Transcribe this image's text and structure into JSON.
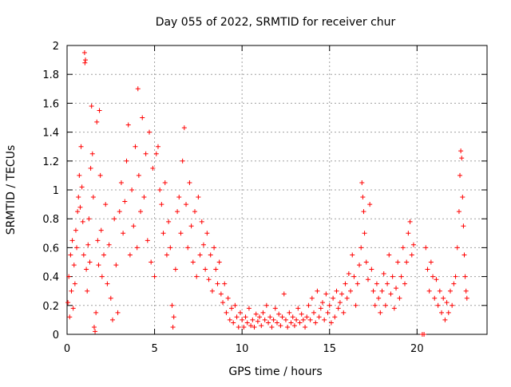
{
  "chart_data": {
    "type": "scatter",
    "title": "Day 055 of 2022, SRMTID for receiver chur",
    "xlabel": "GPS time / hours",
    "ylabel": "SRMTID / TECUs",
    "xlim": [
      0,
      24
    ],
    "ylim": [
      0,
      2
    ],
    "x_ticks": [
      0,
      5,
      10,
      15,
      20
    ],
    "x_tick_labels": [
      "0",
      "5",
      "10",
      "15",
      "20"
    ],
    "y_ticks": [
      0,
      0.2,
      0.4,
      0.6,
      0.8,
      1,
      1.2,
      1.4,
      1.6,
      1.8,
      2
    ],
    "y_tick_labels": [
      "0",
      "0.2",
      "0.4",
      "0.6",
      "0.8",
      "1",
      "1.2",
      "1.4",
      "1.6",
      "1.8",
      "2"
    ],
    "grid": true,
    "marker": "+",
    "marker_color": "#ff0000",
    "series": [
      {
        "name": "SRMTID",
        "points": [
          [
            0.05,
            0.22
          ],
          [
            0.1,
            0.4
          ],
          [
            0.15,
            0.12
          ],
          [
            0.2,
            0.55
          ],
          [
            0.25,
            0.3
          ],
          [
            0.3,
            0.65
          ],
          [
            0.35,
            0.18
          ],
          [
            0.4,
            0.48
          ],
          [
            0.45,
            0.35
          ],
          [
            0.5,
            0.72
          ],
          [
            0.55,
            0.6
          ],
          [
            0.6,
            0.85
          ],
          [
            0.65,
            0.95
          ],
          [
            0.7,
            1.1
          ],
          [
            0.75,
            0.88
          ],
          [
            0.8,
            1.3
          ],
          [
            0.85,
            1.02
          ],
          [
            0.9,
            0.78
          ],
          [
            0.95,
            0.55
          ],
          [
            1.0,
            1.95
          ],
          [
            1.02,
            1.88
          ],
          [
            1.05,
            1.9
          ],
          [
            1.1,
            0.45
          ],
          [
            1.15,
            0.3
          ],
          [
            1.2,
            0.62
          ],
          [
            1.25,
            0.8
          ],
          [
            1.3,
            0.5
          ],
          [
            1.35,
            1.15
          ],
          [
            1.4,
            1.58
          ],
          [
            1.45,
            1.25
          ],
          [
            1.5,
            0.95
          ],
          [
            1.55,
            0.05
          ],
          [
            1.6,
            0.02
          ],
          [
            1.65,
            0.15
          ],
          [
            1.7,
            1.47
          ],
          [
            1.75,
            0.65
          ],
          [
            1.8,
            0.48
          ],
          [
            1.85,
            1.55
          ],
          [
            1.9,
            1.1
          ],
          [
            1.95,
            0.72
          ],
          [
            2.0,
            0.4
          ],
          [
            2.1,
            0.55
          ],
          [
            2.2,
            0.9
          ],
          [
            2.3,
            0.35
          ],
          [
            2.4,
            0.62
          ],
          [
            2.5,
            0.25
          ],
          [
            2.6,
            0.1
          ],
          [
            2.7,
            0.8
          ],
          [
            2.8,
            0.48
          ],
          [
            2.9,
            0.15
          ],
          [
            3.0,
            0.85
          ],
          [
            3.1,
            1.05
          ],
          [
            3.2,
            0.7
          ],
          [
            3.3,
            0.92
          ],
          [
            3.4,
            1.2
          ],
          [
            3.5,
            1.45
          ],
          [
            3.6,
            0.55
          ],
          [
            3.7,
            1.0
          ],
          [
            3.8,
            0.75
          ],
          [
            3.9,
            1.3
          ],
          [
            4.0,
            0.6
          ],
          [
            4.05,
            1.7
          ],
          [
            4.1,
            1.1
          ],
          [
            4.2,
            0.85
          ],
          [
            4.3,
            1.5
          ],
          [
            4.4,
            0.95
          ],
          [
            4.5,
            1.25
          ],
          [
            4.6,
            0.65
          ],
          [
            4.7,
            1.4
          ],
          [
            4.8,
            0.5
          ],
          [
            4.9,
            1.15
          ],
          [
            5.0,
            0.4
          ],
          [
            5.1,
            1.25
          ],
          [
            5.2,
            1.3
          ],
          [
            5.3,
            1.0
          ],
          [
            5.4,
            0.9
          ],
          [
            5.5,
            0.7
          ],
          [
            5.6,
            1.05
          ],
          [
            5.7,
            0.55
          ],
          [
            5.8,
            0.78
          ],
          [
            5.9,
            0.6
          ],
          [
            6.0,
            0.2
          ],
          [
            6.05,
            0.05
          ],
          [
            6.1,
            0.12
          ],
          [
            6.2,
            0.45
          ],
          [
            6.3,
            0.85
          ],
          [
            6.4,
            0.95
          ],
          [
            6.5,
            0.7
          ],
          [
            6.6,
            1.2
          ],
          [
            6.7,
            1.43
          ],
          [
            6.8,
            0.9
          ],
          [
            6.9,
            0.6
          ],
          [
            7.0,
            1.05
          ],
          [
            7.1,
            0.75
          ],
          [
            7.2,
            0.5
          ],
          [
            7.3,
            0.85
          ],
          [
            7.4,
            0.4
          ],
          [
            7.5,
            0.95
          ],
          [
            7.6,
            0.55
          ],
          [
            7.7,
            0.78
          ],
          [
            7.8,
            0.62
          ],
          [
            7.9,
            0.45
          ],
          [
            8.0,
            0.7
          ],
          [
            8.1,
            0.38
          ],
          [
            8.2,
            0.55
          ],
          [
            8.3,
            0.3
          ],
          [
            8.4,
            0.6
          ],
          [
            8.5,
            0.45
          ],
          [
            8.6,
            0.35
          ],
          [
            8.7,
            0.5
          ],
          [
            8.8,
            0.28
          ],
          [
            8.9,
            0.22
          ],
          [
            9.0,
            0.35
          ],
          [
            9.1,
            0.15
          ],
          [
            9.2,
            0.25
          ],
          [
            9.3,
            0.1
          ],
          [
            9.4,
            0.18
          ],
          [
            9.5,
            0.08
          ],
          [
            9.6,
            0.2
          ],
          [
            9.7,
            0.12
          ],
          [
            9.8,
            0.05
          ],
          [
            9.9,
            0.15
          ],
          [
            10.0,
            0.1
          ],
          [
            10.1,
            0.05
          ],
          [
            10.2,
            0.12
          ],
          [
            10.3,
            0.08
          ],
          [
            10.4,
            0.18
          ],
          [
            10.5,
            0.06
          ],
          [
            10.6,
            0.1
          ],
          [
            10.7,
            0.05
          ],
          [
            10.8,
            0.14
          ],
          [
            10.9,
            0.09
          ],
          [
            11.0,
            0.12
          ],
          [
            11.1,
            0.06
          ],
          [
            11.2,
            0.15
          ],
          [
            11.3,
            0.1
          ],
          [
            11.4,
            0.2
          ],
          [
            11.5,
            0.08
          ],
          [
            11.6,
            0.12
          ],
          [
            11.7,
            0.05
          ],
          [
            11.8,
            0.1
          ],
          [
            11.9,
            0.18
          ],
          [
            12.0,
            0.08
          ],
          [
            12.1,
            0.14
          ],
          [
            12.2,
            0.06
          ],
          [
            12.3,
            0.12
          ],
          [
            12.4,
            0.28
          ],
          [
            12.5,
            0.1
          ],
          [
            12.6,
            0.05
          ],
          [
            12.7,
            0.15
          ],
          [
            12.8,
            0.08
          ],
          [
            12.9,
            0.12
          ],
          [
            13.0,
            0.06
          ],
          [
            13.1,
            0.1
          ],
          [
            13.2,
            0.18
          ],
          [
            13.3,
            0.08
          ],
          [
            13.4,
            0.14
          ],
          [
            13.5,
            0.1
          ],
          [
            13.6,
            0.05
          ],
          [
            13.7,
            0.12
          ],
          [
            13.8,
            0.2
          ],
          [
            13.9,
            0.1
          ],
          [
            14.0,
            0.25
          ],
          [
            14.1,
            0.15
          ],
          [
            14.2,
            0.08
          ],
          [
            14.3,
            0.3
          ],
          [
            14.4,
            0.12
          ],
          [
            14.5,
            0.18
          ],
          [
            14.6,
            0.22
          ],
          [
            14.7,
            0.1
          ],
          [
            14.8,
            0.28
          ],
          [
            14.9,
            0.15
          ],
          [
            15.0,
            0.2
          ],
          [
            15.1,
            0.08
          ],
          [
            15.2,
            0.25
          ],
          [
            15.3,
            0.12
          ],
          [
            15.4,
            0.3
          ],
          [
            15.5,
            0.18
          ],
          [
            15.6,
            0.22
          ],
          [
            15.7,
            0.28
          ],
          [
            15.8,
            0.15
          ],
          [
            15.9,
            0.35
          ],
          [
            16.0,
            0.25
          ],
          [
            16.1,
            0.42
          ],
          [
            16.2,
            0.3
          ],
          [
            16.3,
            0.55
          ],
          [
            16.4,
            0.4
          ],
          [
            16.5,
            0.2
          ],
          [
            16.6,
            0.35
          ],
          [
            16.7,
            0.48
          ],
          [
            16.8,
            0.6
          ],
          [
            16.85,
            1.05
          ],
          [
            16.9,
            0.95
          ],
          [
            16.95,
            0.85
          ],
          [
            17.0,
            0.7
          ],
          [
            17.1,
            0.5
          ],
          [
            17.2,
            0.38
          ],
          [
            17.3,
            0.9
          ],
          [
            17.4,
            0.45
          ],
          [
            17.5,
            0.3
          ],
          [
            17.6,
            0.2
          ],
          [
            17.7,
            0.35
          ],
          [
            17.8,
            0.25
          ],
          [
            17.9,
            0.15
          ],
          [
            18.0,
            0.3
          ],
          [
            18.1,
            0.42
          ],
          [
            18.2,
            0.2
          ],
          [
            18.3,
            0.35
          ],
          [
            18.4,
            0.55
          ],
          [
            18.5,
            0.28
          ],
          [
            18.6,
            0.4
          ],
          [
            18.7,
            0.18
          ],
          [
            18.8,
            0.32
          ],
          [
            18.9,
            0.5
          ],
          [
            19.0,
            0.25
          ],
          [
            19.1,
            0.4
          ],
          [
            19.2,
            0.6
          ],
          [
            19.3,
            0.35
          ],
          [
            19.4,
            0.5
          ],
          [
            19.5,
            0.7
          ],
          [
            19.6,
            0.78
          ],
          [
            19.7,
            0.55
          ],
          [
            19.8,
            0.62
          ],
          [
            20.3,
            0.0
          ],
          [
            20.4,
            0.0
          ],
          [
            20.5,
            0.6
          ],
          [
            20.6,
            0.45
          ],
          [
            20.7,
            0.3
          ],
          [
            20.8,
            0.5
          ],
          [
            20.9,
            0.4
          ],
          [
            21.0,
            0.25
          ],
          [
            21.1,
            0.38
          ],
          [
            21.2,
            0.2
          ],
          [
            21.3,
            0.3
          ],
          [
            21.4,
            0.15
          ],
          [
            21.5,
            0.25
          ],
          [
            21.6,
            0.1
          ],
          [
            21.7,
            0.22
          ],
          [
            21.8,
            0.15
          ],
          [
            21.9,
            0.3
          ],
          [
            22.0,
            0.2
          ],
          [
            22.1,
            0.35
          ],
          [
            22.2,
            0.4
          ],
          [
            22.3,
            0.6
          ],
          [
            22.4,
            0.85
          ],
          [
            22.45,
            1.1
          ],
          [
            22.5,
            1.27
          ],
          [
            22.55,
            1.22
          ],
          [
            22.6,
            0.95
          ],
          [
            22.65,
            0.75
          ],
          [
            22.7,
            0.55
          ],
          [
            22.75,
            0.4
          ],
          [
            22.8,
            0.3
          ],
          [
            22.85,
            0.25
          ]
        ]
      }
    ]
  }
}
